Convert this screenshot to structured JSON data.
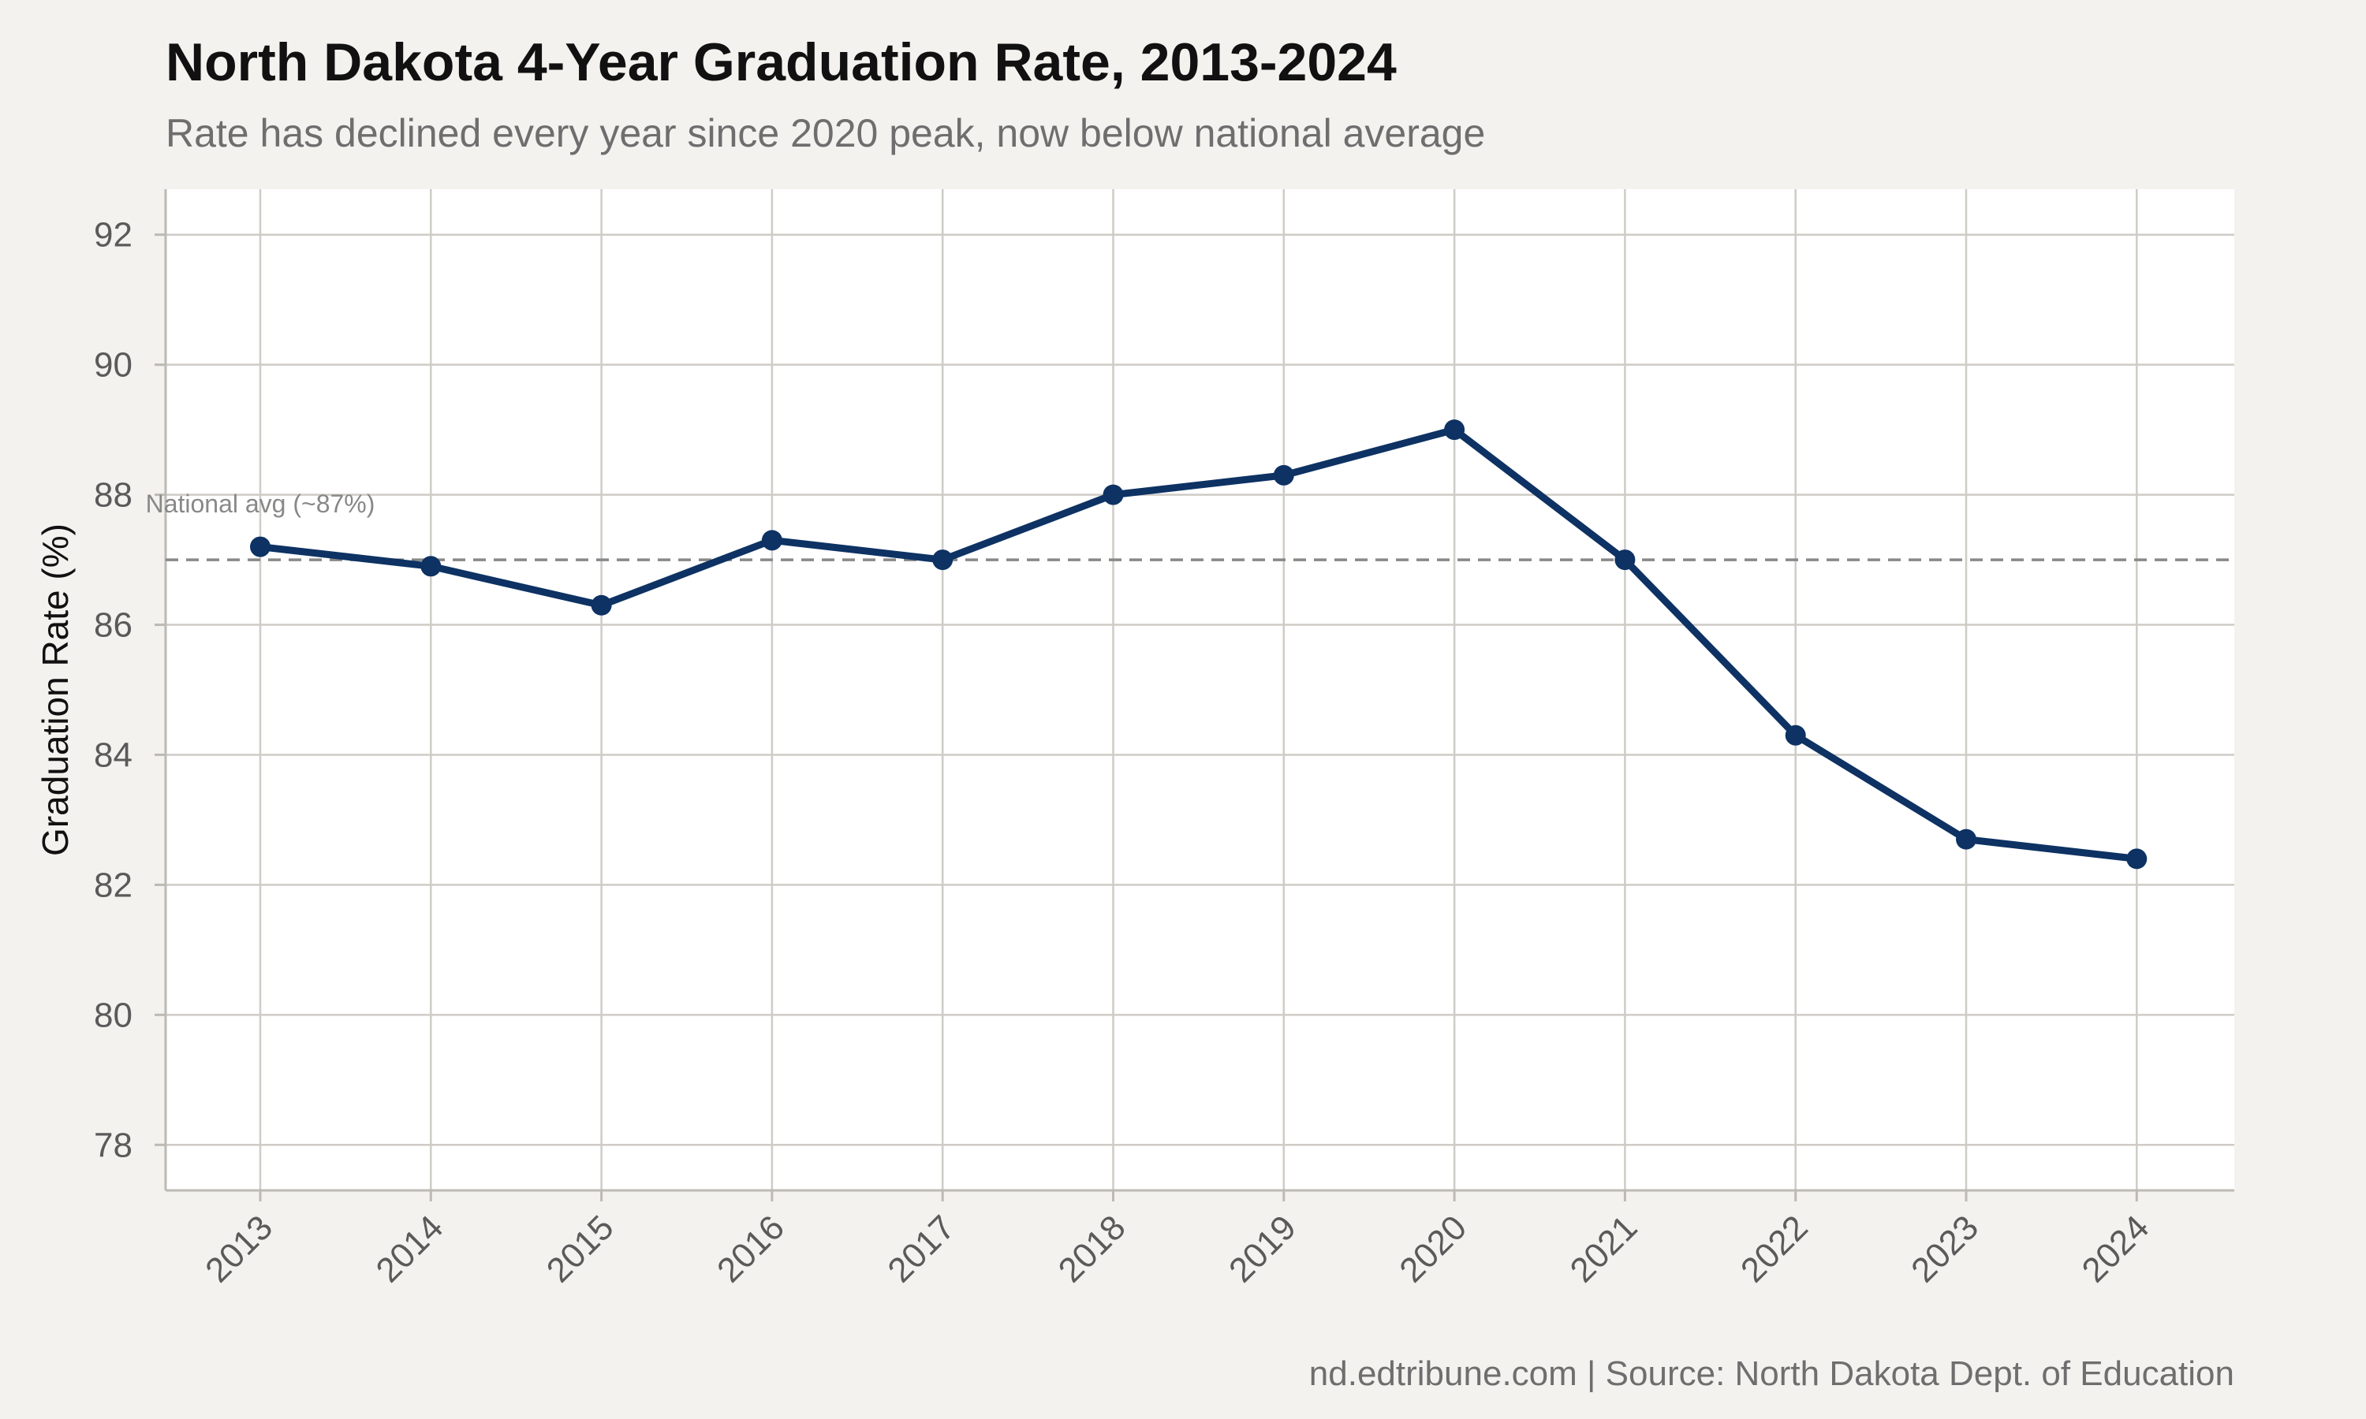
{
  "chart_data": {
    "type": "line",
    "title": "North Dakota 4-Year Graduation Rate, 2013-2024",
    "subtitle": "Rate has declined every year since 2020 peak, now below national average",
    "xlabel": "",
    "ylabel": "Graduation Rate (%)",
    "caption": "nd.edtribune.com | Source: North Dakota Dept. of Education",
    "x": [
      "2013",
      "2014",
      "2015",
      "2016",
      "2017",
      "2018",
      "2019",
      "2020",
      "2021",
      "2022",
      "2023",
      "2024"
    ],
    "y": [
      87.2,
      86.9,
      86.3,
      87.3,
      87.0,
      88.0,
      88.3,
      89.0,
      87.0,
      84.3,
      82.7,
      82.4
    ],
    "ylim": [
      77.3,
      92.7
    ],
    "yticks": [
      78,
      80,
      82,
      84,
      86,
      88,
      90,
      92
    ],
    "grid": true,
    "reference_line": {
      "value": 87,
      "label": "National avg (~87%)",
      "style": "dashed"
    },
    "colors": {
      "line": "#0d3263",
      "reference": "#888888",
      "grid": "#cfcbc6",
      "panel": "#ffffff",
      "background": "#f4f2ee"
    }
  }
}
